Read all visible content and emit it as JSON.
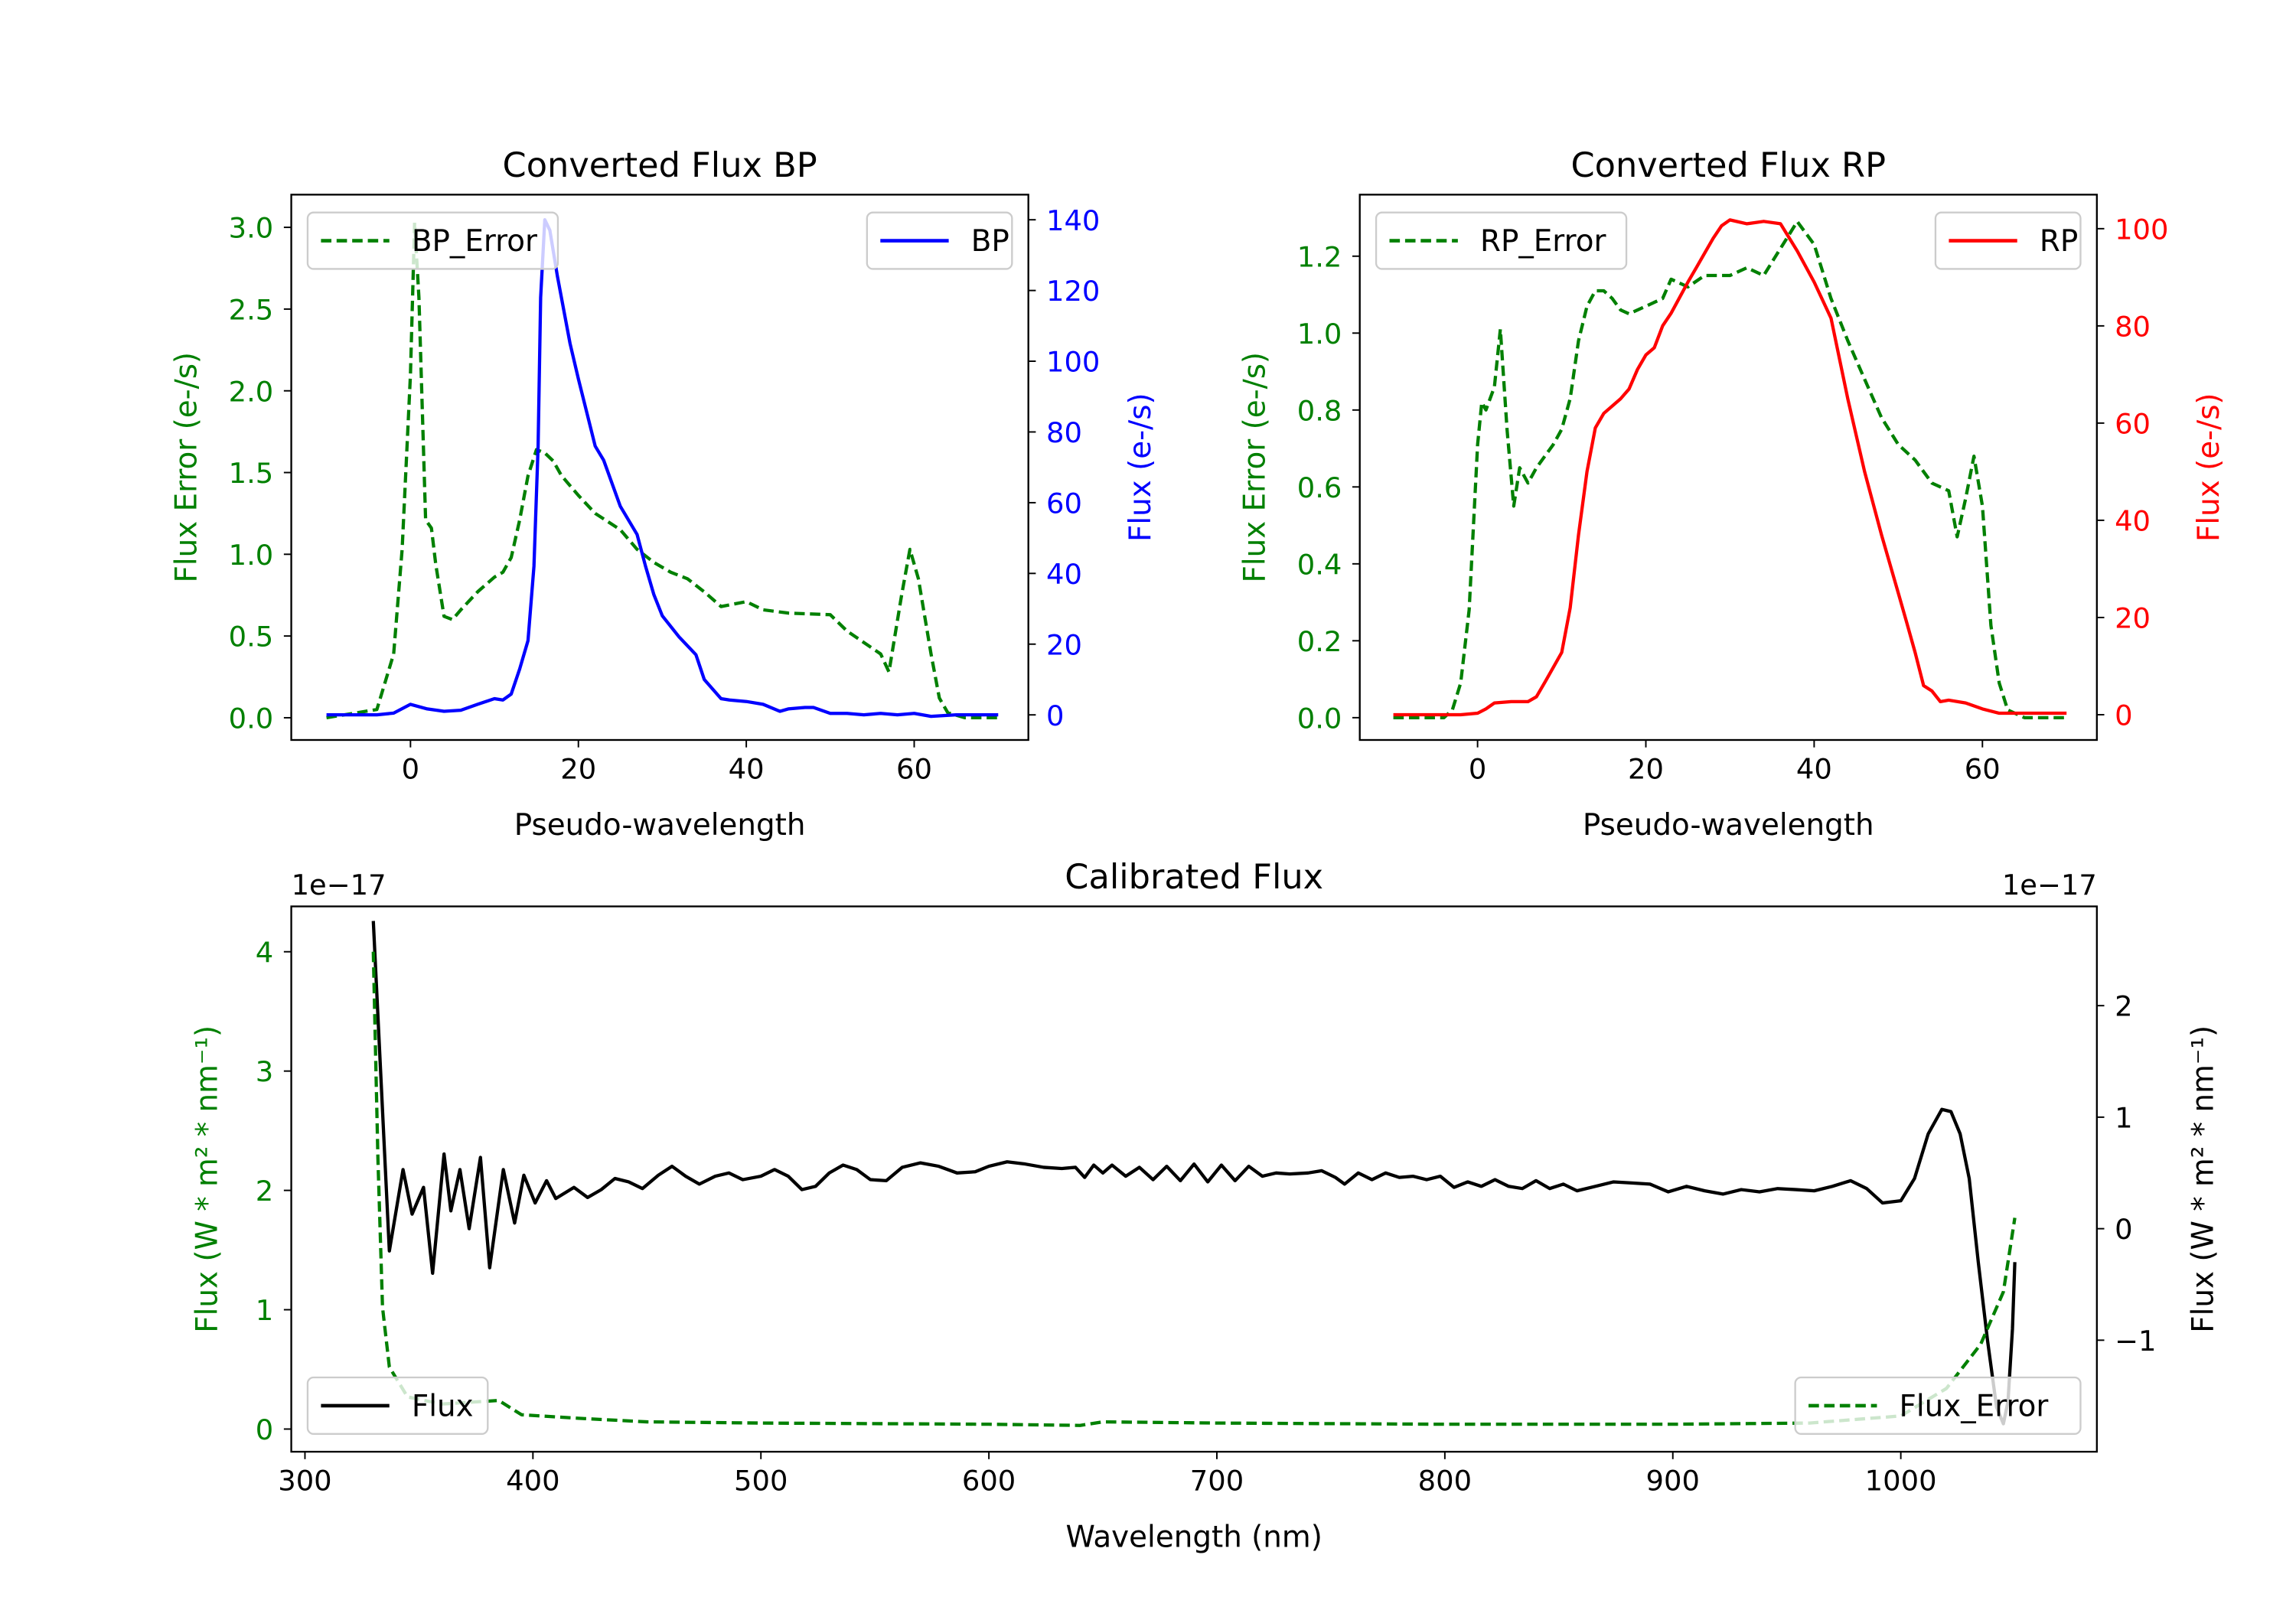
{
  "colors": {
    "green": "#008000",
    "blue": "#0000ff",
    "red": "#ff0000",
    "black": "#000000"
  },
  "chart_data": [
    {
      "type": "line",
      "title": "Converted Flux BP",
      "xlabel": "Pseudo-wavelength",
      "ylabel_left": "Flux Error (e-/s)",
      "ylabel_right": "Flux (e-/s)",
      "left_color": "#008000",
      "right_color": "#0000ff",
      "xlim": [
        -14.2,
        73.6
      ],
      "ylim_left": [
        -0.136,
        3.2
      ],
      "ylim_right": [
        -7.1,
        147.1
      ],
      "xticks": [
        {
          "v": 0,
          "label": "0"
        },
        {
          "v": 20,
          "label": "20"
        },
        {
          "v": 40,
          "label": "40"
        },
        {
          "v": 60,
          "label": "60"
        }
      ],
      "yticks_left": [
        {
          "v": 0,
          "label": "0.0"
        },
        {
          "v": 0.5,
          "label": "0.5"
        },
        {
          "v": 1,
          "label": "1.0"
        },
        {
          "v": 1.5,
          "label": "1.5"
        },
        {
          "v": 2,
          "label": "2.0"
        },
        {
          "v": 2.5,
          "label": "2.5"
        },
        {
          "v": 3,
          "label": "3.0"
        }
      ],
      "yticks_right": [
        {
          "v": 0,
          "label": "0"
        },
        {
          "v": 20,
          "label": "20"
        },
        {
          "v": 40,
          "label": "40"
        },
        {
          "v": 60,
          "label": "60"
        },
        {
          "v": 80,
          "label": "80"
        },
        {
          "v": 100,
          "label": "100"
        },
        {
          "v": 120,
          "label": "120"
        },
        {
          "v": 140,
          "label": "140"
        }
      ],
      "legends": [
        {
          "label": "BP_Error",
          "series": 0,
          "loc": "upper-left"
        },
        {
          "label": "BP",
          "series": 1,
          "loc": "upper-right"
        }
      ],
      "series": [
        {
          "name": "BP_Error",
          "axis": "left",
          "color": "#008000",
          "style": "dashed",
          "x": [
            -10,
            -4,
            -2,
            -1,
            0,
            0.5,
            1,
            1.8,
            2.5,
            3,
            4,
            5,
            6,
            8,
            10,
            11,
            12,
            13,
            14,
            15,
            16,
            17,
            18,
            20,
            22,
            25,
            27,
            29,
            31,
            33,
            35,
            37,
            40,
            42,
            45,
            50,
            52,
            54,
            56,
            57,
            58.5,
            59.5,
            60.5,
            62,
            63,
            64,
            66,
            70
          ],
          "y": [
            0,
            0.05,
            0.39,
            1.03,
            2.1,
            3.03,
            2.57,
            1.21,
            1.16,
            0.94,
            0.62,
            0.6,
            0.66,
            0.77,
            0.86,
            0.89,
            0.98,
            1.21,
            1.48,
            1.64,
            1.62,
            1.57,
            1.48,
            1.36,
            1.25,
            1.15,
            1.03,
            0.95,
            0.89,
            0.85,
            0.77,
            0.68,
            0.71,
            0.66,
            0.64,
            0.63,
            0.53,
            0.46,
            0.39,
            0.28,
            0.75,
            1.03,
            0.85,
            0.39,
            0.12,
            0.03,
            0,
            0
          ]
        },
        {
          "name": "BP",
          "axis": "right",
          "color": "#0000ff",
          "style": "solid",
          "x": [
            -10,
            -4,
            -2,
            0,
            2,
            4,
            6,
            8,
            10,
            11,
            12,
            13,
            14,
            14.7,
            15.2,
            15.5,
            16,
            16.6,
            17.5,
            19,
            20,
            22,
            23,
            25,
            27,
            28,
            29,
            30,
            32,
            34,
            35,
            37,
            38,
            40,
            42,
            44,
            45,
            47,
            48,
            50,
            52,
            54,
            56,
            58,
            60,
            62,
            65,
            70
          ],
          "y": [
            0,
            0,
            0.5,
            3,
            1.7,
            1,
            1.3,
            3,
            4.6,
            4.2,
            5.9,
            13,
            21,
            42,
            76,
            118,
            140,
            137,
            124,
            105,
            95,
            76,
            72,
            59,
            51,
            42,
            34,
            28,
            22,
            17,
            10,
            4.6,
            4.2,
            3.8,
            3,
            1,
            1.7,
            2.1,
            2.1,
            0.4,
            0.4,
            0,
            0.4,
            0,
            0.4,
            -0.4,
            0,
            0
          ]
        }
      ]
    },
    {
      "type": "line",
      "title": "Converted Flux RP",
      "xlabel": "Pseudo-wavelength",
      "ylabel_left": "Flux Error (e-/s)",
      "ylabel_right": "Flux (e-/s)",
      "left_color": "#008000",
      "right_color": "#ff0000",
      "xlim": [
        -14,
        73.6
      ],
      "ylim_left": [
        -0.058,
        1.36
      ],
      "ylim_right": [
        -5.2,
        107
      ],
      "xticks": [
        {
          "v": 0,
          "label": "0"
        },
        {
          "v": 20,
          "label": "20"
        },
        {
          "v": 40,
          "label": "40"
        },
        {
          "v": 60,
          "label": "60"
        }
      ],
      "yticks_left": [
        {
          "v": 0,
          "label": "0.0"
        },
        {
          "v": 0.2,
          "label": "0.2"
        },
        {
          "v": 0.4,
          "label": "0.4"
        },
        {
          "v": 0.6,
          "label": "0.6"
        },
        {
          "v": 0.8,
          "label": "0.8"
        },
        {
          "v": 1.0,
          "label": "1.0"
        },
        {
          "v": 1.2,
          "label": "1.2"
        }
      ],
      "yticks_right": [
        {
          "v": 0,
          "label": "0"
        },
        {
          "v": 20,
          "label": "20"
        },
        {
          "v": 40,
          "label": "40"
        },
        {
          "v": 60,
          "label": "60"
        },
        {
          "v": 80,
          "label": "80"
        },
        {
          "v": 100,
          "label": "100"
        }
      ],
      "legends": [
        {
          "label": "RP_Error",
          "series": 0,
          "loc": "upper-left"
        },
        {
          "label": "RP",
          "series": 1,
          "loc": "upper-right"
        }
      ],
      "series": [
        {
          "name": "RP_Error",
          "axis": "left",
          "color": "#008000",
          "style": "dashed",
          "x": [
            -10,
            -4,
            -3,
            -2,
            -1,
            0,
            0.5,
            1,
            2,
            2.7,
            3.5,
            4.3,
            5,
            6,
            7,
            9,
            10,
            11,
            12,
            13,
            14,
            15,
            16,
            17,
            18,
            20,
            22,
            23,
            25,
            27,
            30,
            32,
            34,
            36,
            38,
            40,
            42,
            44,
            46,
            48,
            50,
            52,
            54,
            56,
            57,
            58,
            59,
            60,
            61,
            62,
            63,
            65,
            70
          ],
          "y": [
            0,
            0,
            0.02,
            0.09,
            0.28,
            0.71,
            0.82,
            0.8,
            0.86,
            1.01,
            0.75,
            0.55,
            0.65,
            0.61,
            0.65,
            0.71,
            0.75,
            0.83,
            0.98,
            1.07,
            1.11,
            1.11,
            1.09,
            1.06,
            1.05,
            1.07,
            1.09,
            1.14,
            1.12,
            1.15,
            1.15,
            1.17,
            1.15,
            1.22,
            1.29,
            1.23,
            1.09,
            0.98,
            0.88,
            0.78,
            0.71,
            0.67,
            0.61,
            0.59,
            0.47,
            0.57,
            0.68,
            0.55,
            0.24,
            0.09,
            0.02,
            0,
            0
          ]
        },
        {
          "name": "RP",
          "axis": "right",
          "color": "#ff0000",
          "style": "solid",
          "x": [
            -10,
            -2,
            0,
            1,
            2,
            4,
            6,
            7,
            8,
            10,
            11,
            12,
            13,
            14,
            15,
            17,
            18,
            19,
            20,
            21,
            22,
            23,
            25,
            26,
            27,
            28,
            29,
            30,
            32,
            34,
            36,
            38,
            40,
            42,
            44,
            46,
            48,
            50,
            51,
            52,
            53,
            54,
            55,
            56,
            58,
            60,
            62,
            70
          ],
          "y": [
            0,
            0,
            0.3,
            1.2,
            2.4,
            2.7,
            2.7,
            3.7,
            6.7,
            12.8,
            22,
            37,
            50,
            59,
            62,
            65,
            67,
            71,
            74,
            75.5,
            80,
            82.6,
            89,
            92,
            95,
            98,
            100.6,
            101.8,
            101,
            101.5,
            101,
            95.4,
            89,
            81.6,
            65,
            50,
            37,
            25,
            19,
            12.8,
            6,
            4.9,
            2.7,
            3,
            2.4,
            1.2,
            0.3,
            0.3
          ]
        }
      ]
    },
    {
      "type": "line",
      "title": "Calibrated Flux",
      "xlabel": "Wavelength (nm)",
      "ylabel_left": "Flux (W * m² * nm⁻¹)",
      "ylabel_right": "Flux (W * m² * nm⁻¹)",
      "left_color": "#008000",
      "right_color": "#000000",
      "offset_left": "1e−17",
      "offset_right": "1e−17",
      "xlim": [
        294,
        1086
      ],
      "ylim_left": [
        -0.19,
        4.38
      ],
      "ylim_right": [
        -2.0,
        2.89
      ],
      "xticks": [
        {
          "v": 300,
          "label": "300"
        },
        {
          "v": 400,
          "label": "400"
        },
        {
          "v": 500,
          "label": "500"
        },
        {
          "v": 600,
          "label": "600"
        },
        {
          "v": 700,
          "label": "700"
        },
        {
          "v": 800,
          "label": "800"
        },
        {
          "v": 900,
          "label": "900"
        },
        {
          "v": 1000,
          "label": "1000"
        }
      ],
      "yticks_left": [
        {
          "v": 0,
          "label": "0"
        },
        {
          "v": 1,
          "label": "1"
        },
        {
          "v": 2,
          "label": "2"
        },
        {
          "v": 3,
          "label": "3"
        },
        {
          "v": 4,
          "label": "4"
        }
      ],
      "yticks_right": [
        {
          "v": -1,
          "label": "−1"
        },
        {
          "v": 0,
          "label": "0"
        },
        {
          "v": 1,
          "label": "1"
        },
        {
          "v": 2,
          "label": "2"
        }
      ],
      "legends": [
        {
          "label": "Flux",
          "series": 0,
          "loc": "lower-left"
        },
        {
          "label": "Flux_Error",
          "series": 1,
          "loc": "lower-right"
        }
      ],
      "series": [
        {
          "name": "Flux",
          "axis": "right",
          "color": "#000000",
          "style": "solid",
          "x": [
            330,
            337,
            343,
            347,
            352,
            356,
            361,
            364,
            368,
            372,
            377,
            381,
            387,
            392,
            396,
            401,
            406,
            410,
            418,
            424,
            430,
            436,
            442,
            448,
            455,
            461,
            467,
            473,
            480,
            486,
            492,
            500,
            506,
            512,
            518,
            524,
            530,
            536,
            542,
            548,
            555,
            562,
            570,
            578,
            586,
            594,
            600,
            608,
            616,
            624,
            632,
            638,
            642,
            646,
            650,
            654,
            660,
            666,
            672,
            678,
            684,
            690,
            696,
            702,
            708,
            714,
            720,
            726,
            732,
            740,
            746,
            752,
            756,
            762,
            768,
            774,
            780,
            786,
            792,
            798,
            804,
            810,
            816,
            822,
            828,
            834,
            840,
            846,
            852,
            858,
            866,
            874,
            882,
            890,
            898,
            906,
            914,
            922,
            930,
            938,
            946,
            954,
            962,
            970,
            978,
            985,
            992,
            1000,
            1006,
            1012,
            1018,
            1022,
            1026,
            1030,
            1034,
            1038,
            1042,
            1045,
            1047,
            1049,
            1050
          ],
          "y": [
            2.76,
            -0.2,
            0.53,
            0.13,
            0.37,
            -0.4,
            0.67,
            0.16,
            0.53,
            0,
            0.64,
            -0.35,
            0.53,
            0.05,
            0.48,
            0.23,
            0.43,
            0.27,
            0.37,
            0.28,
            0.35,
            0.45,
            0.42,
            0.36,
            0.48,
            0.56,
            0.47,
            0.4,
            0.47,
            0.5,
            0.44,
            0.47,
            0.53,
            0.47,
            0.35,
            0.38,
            0.5,
            0.57,
            0.53,
            0.44,
            0.43,
            0.55,
            0.59,
            0.56,
            0.5,
            0.51,
            0.56,
            0.6,
            0.58,
            0.55,
            0.54,
            0.55,
            0.46,
            0.57,
            0.5,
            0.57,
            0.47,
            0.55,
            0.44,
            0.56,
            0.43,
            0.58,
            0.42,
            0.57,
            0.43,
            0.56,
            0.47,
            0.5,
            0.49,
            0.5,
            0.52,
            0.46,
            0.4,
            0.5,
            0.44,
            0.5,
            0.46,
            0.47,
            0.44,
            0.47,
            0.37,
            0.42,
            0.38,
            0.44,
            0.38,
            0.36,
            0.43,
            0.36,
            0.4,
            0.34,
            0.38,
            0.42,
            0.41,
            0.4,
            0.33,
            0.38,
            0.34,
            0.31,
            0.35,
            0.33,
            0.36,
            0.35,
            0.34,
            0.38,
            0.43,
            0.36,
            0.23,
            0.25,
            0.45,
            0.85,
            1.07,
            1.05,
            0.85,
            0.45,
            -0.3,
            -1.0,
            -1.6,
            -1.75,
            -1.55,
            -0.9,
            -0.3
          ]
        },
        {
          "name": "Flux_Error",
          "axis": "left",
          "color": "#008000",
          "style": "dashed",
          "x": [
            330,
            332,
            334,
            337,
            345,
            360,
            385,
            395,
            420,
            450,
            500,
            600,
            640,
            650,
            700,
            800,
            900,
            960,
            1000,
            1020,
            1035,
            1045,
            1050
          ],
          "y": [
            4.0,
            2.27,
            1.02,
            0.52,
            0.27,
            0.21,
            0.24,
            0.12,
            0.09,
            0.06,
            0.05,
            0.04,
            0.03,
            0.06,
            0.05,
            0.04,
            0.04,
            0.05,
            0.11,
            0.34,
            0.71,
            1.15,
            1.77
          ]
        }
      ]
    }
  ]
}
